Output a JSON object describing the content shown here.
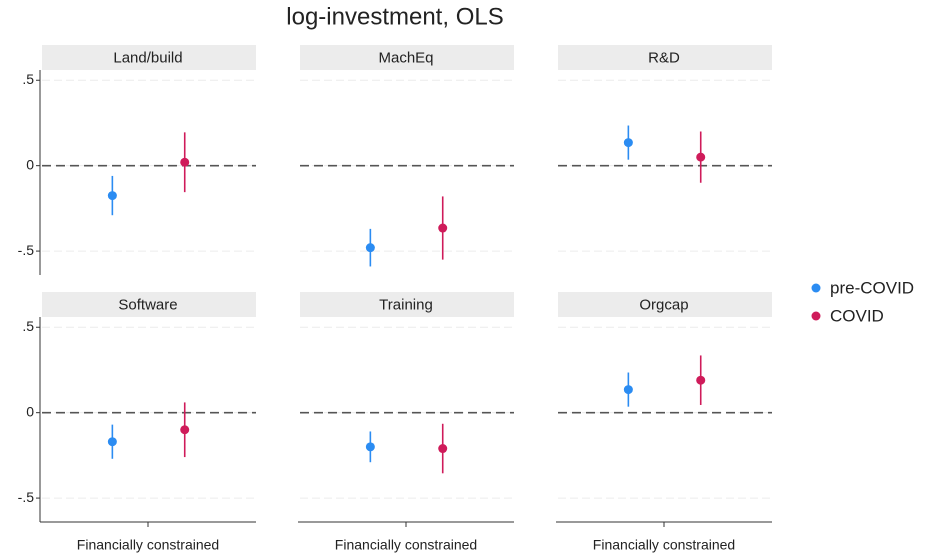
{
  "title": "log-investment, OLS",
  "series": [
    {
      "name": "pre-COVID",
      "color": "#2b8cf2"
    },
    {
      "name": "COVID",
      "color": "#cf1b5a"
    }
  ],
  "ylim": [
    -0.64,
    0.56
  ],
  "yticks": [
    {
      "value": 0.5,
      "label": ".5"
    },
    0,
    {
      "value": -0.5,
      "label": "-.5"
    }
  ],
  "refline": 0,
  "chart_data": [
    {
      "type": "errorbar",
      "title": "Land/build",
      "series": [
        {
          "values": [
            -0.175
          ],
          "errors": [
            0.115
          ]
        },
        {
          "values": [
            0.02
          ],
          "errors": [
            0.175
          ]
        }
      ]
    },
    {
      "type": "errorbar",
      "title": "MachEq",
      "series": [
        {
          "values": [
            -0.48
          ],
          "errors": [
            0.11
          ]
        },
        {
          "values": [
            -0.365
          ],
          "errors": [
            0.185
          ]
        }
      ]
    },
    {
      "type": "errorbar",
      "title": "R&D",
      "series": [
        {
          "values": [
            0.135
          ],
          "errors": [
            0.1
          ]
        },
        {
          "values": [
            0.05
          ],
          "errors": [
            0.15
          ]
        }
      ]
    },
    {
      "type": "errorbar",
      "title": "Software",
      "categories": [
        "Financially constrained"
      ],
      "series": [
        {
          "values": [
            -0.17
          ],
          "errors": [
            0.1
          ]
        },
        {
          "values": [
            -0.1
          ],
          "errors": [
            0.16
          ]
        }
      ]
    },
    {
      "type": "errorbar",
      "title": "Training",
      "categories": [
        "Financially constrained"
      ],
      "series": [
        {
          "values": [
            -0.2
          ],
          "errors": [
            0.09
          ]
        },
        {
          "values": [
            -0.21
          ],
          "errors": [
            0.145
          ]
        }
      ]
    },
    {
      "type": "errorbar",
      "title": "Orgcap",
      "categories": [
        "Financially constrained"
      ],
      "series": [
        {
          "values": [
            0.135
          ],
          "errors": [
            0.1
          ]
        },
        {
          "values": [
            0.19
          ],
          "errors": [
            0.145
          ]
        }
      ]
    }
  ]
}
